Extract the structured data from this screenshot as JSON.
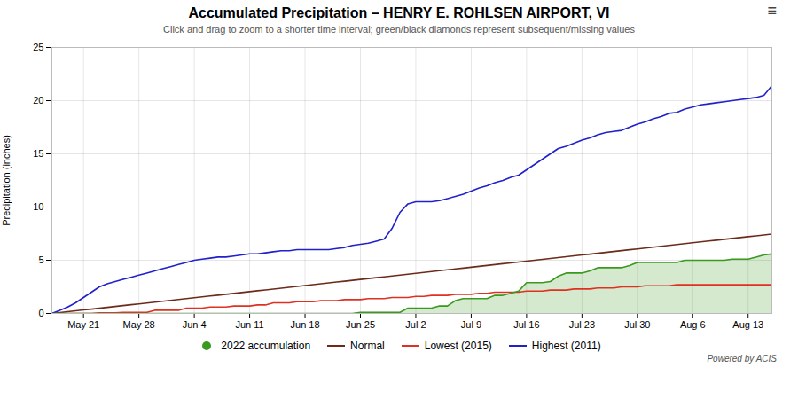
{
  "chart_data": {
    "type": "line",
    "title": "Accumulated Precipitation – HENRY E. ROHLSEN AIRPORT, VI",
    "subtitle": "Click and drag to zoom to a shorter time interval; green/black diamonds represent subsequent/missing values",
    "ylabel": "Precipitation (inches)",
    "annotations": [
      "≡",
      "Powered by ACIS"
    ],
    "categories": [
      null,
      null,
      null,
      null,
      "May 21",
      null,
      null,
      null,
      null,
      null,
      null,
      "May 28",
      null,
      null,
      null,
      null,
      null,
      null,
      "Jun 4",
      null,
      null,
      null,
      null,
      null,
      null,
      "Jun 11",
      null,
      null,
      null,
      null,
      null,
      null,
      "Jun 18",
      null,
      null,
      null,
      null,
      null,
      null,
      "Jun 25",
      null,
      null,
      null,
      null,
      null,
      null,
      "Jul 2",
      null,
      null,
      null,
      null,
      null,
      null,
      "Jul 9",
      null,
      null,
      null,
      null,
      null,
      null,
      "Jul 16",
      null,
      null,
      null,
      null,
      null,
      null,
      "Jul 23",
      null,
      null,
      null,
      null,
      null,
      null,
      "Jul 30",
      null,
      null,
      null,
      null,
      null,
      null,
      "Aug 6",
      null,
      null,
      null,
      null,
      null,
      null,
      "Aug 13",
      null,
      null,
      null
    ],
    "ylim": [
      0,
      25
    ],
    "yticks": [
      0,
      5,
      10,
      15,
      20,
      25
    ],
    "grid": true,
    "legend": "bottom",
    "series": [
      {
        "name": "2022 accumulation",
        "type": "area",
        "color": "#3a9a20",
        "values": [
          0.0,
          0.0,
          0.0,
          0.0,
          0.0,
          0.0,
          0.0,
          0.0,
          0.0,
          0.0,
          0.0,
          0.0,
          0.0,
          0.0,
          0.0,
          0.0,
          0.0,
          0.0,
          0.0,
          0.0,
          0.0,
          0.0,
          0.0,
          0.0,
          0.0,
          0.0,
          0.0,
          0.0,
          0.0,
          0.0,
          0.0,
          0.0,
          0.0,
          0.0,
          0.0,
          0.0,
          0.0,
          0.0,
          0.0,
          0.1,
          0.1,
          0.1,
          0.1,
          0.1,
          0.1,
          0.5,
          0.5,
          0.5,
          0.5,
          0.7,
          0.7,
          1.2,
          1.4,
          1.4,
          1.4,
          1.4,
          1.7,
          1.7,
          1.9,
          2.1,
          2.9,
          2.9,
          2.9,
          3.0,
          3.5,
          3.8,
          3.8,
          3.8,
          4.0,
          4.3,
          4.3,
          4.3,
          4.3,
          4.5,
          4.8,
          4.8,
          4.8,
          4.8,
          4.8,
          4.8,
          5.0,
          5.0,
          5.0,
          5.0,
          5.0,
          5.0,
          5.1,
          5.1,
          5.1,
          5.3,
          5.5,
          5.6
        ]
      },
      {
        "name": "Normal",
        "type": "line",
        "color": "#6b2a1a",
        "values": [
          0.0,
          0.082,
          0.164,
          0.246,
          0.328,
          0.41,
          0.492,
          0.574,
          0.656,
          0.738,
          0.82,
          0.902,
          0.984,
          1.066,
          1.148,
          1.23,
          1.312,
          1.394,
          1.476,
          1.558,
          1.64,
          1.722,
          1.804,
          1.886,
          1.968,
          2.05,
          2.132,
          2.214,
          2.296,
          2.378,
          2.46,
          2.542,
          2.624,
          2.706,
          2.788,
          2.87,
          2.952,
          3.034,
          3.116,
          3.198,
          3.28,
          3.362,
          3.444,
          3.526,
          3.608,
          3.69,
          3.772,
          3.854,
          3.936,
          4.018,
          4.1,
          4.182,
          4.264,
          4.346,
          4.428,
          4.51,
          4.592,
          4.674,
          4.756,
          4.838,
          4.92,
          5.002,
          5.084,
          5.166,
          5.248,
          5.33,
          5.412,
          5.494,
          5.576,
          5.658,
          5.74,
          5.822,
          5.904,
          5.986,
          6.068,
          6.15,
          6.232,
          6.314,
          6.396,
          6.478,
          6.56,
          6.642,
          6.724,
          6.806,
          6.888,
          6.97,
          7.052,
          7.134,
          7.216,
          7.298,
          7.38,
          7.462
        ]
      },
      {
        "name": "Lowest (2015)",
        "type": "line",
        "color": "#e03020",
        "values": [
          0.0,
          0.0,
          0.0,
          0.0,
          0.0,
          0.0,
          0.05,
          0.05,
          0.05,
          0.1,
          0.1,
          0.1,
          0.1,
          0.3,
          0.3,
          0.3,
          0.3,
          0.5,
          0.5,
          0.5,
          0.6,
          0.6,
          0.6,
          0.7,
          0.7,
          0.7,
          0.8,
          0.8,
          1.0,
          1.0,
          1.0,
          1.1,
          1.1,
          1.1,
          1.2,
          1.2,
          1.2,
          1.3,
          1.3,
          1.3,
          1.4,
          1.4,
          1.4,
          1.5,
          1.5,
          1.5,
          1.6,
          1.6,
          1.7,
          1.7,
          1.7,
          1.8,
          1.8,
          1.8,
          1.9,
          1.9,
          2.0,
          2.0,
          2.0,
          2.0,
          2.1,
          2.1,
          2.1,
          2.2,
          2.2,
          2.2,
          2.3,
          2.3,
          2.3,
          2.4,
          2.4,
          2.4,
          2.5,
          2.5,
          2.5,
          2.6,
          2.6,
          2.6,
          2.6,
          2.7,
          2.7,
          2.7,
          2.7,
          2.7,
          2.7,
          2.7,
          2.7,
          2.7,
          2.7,
          2.7,
          2.7,
          2.7
        ]
      },
      {
        "name": "Highest (2011)",
        "type": "line",
        "color": "#2020cc",
        "values": [
          0.0,
          0.3,
          0.6,
          1.0,
          1.5,
          2.0,
          2.5,
          2.8,
          3.0,
          3.2,
          3.4,
          3.6,
          3.8,
          4.0,
          4.2,
          4.4,
          4.6,
          4.8,
          5.0,
          5.1,
          5.2,
          5.3,
          5.3,
          5.4,
          5.5,
          5.6,
          5.6,
          5.7,
          5.8,
          5.9,
          5.9,
          6.0,
          6.0,
          6.0,
          6.0,
          6.0,
          6.1,
          6.2,
          6.4,
          6.5,
          6.6,
          6.8,
          7.0,
          8.0,
          9.5,
          10.3,
          10.5,
          10.5,
          10.5,
          10.6,
          10.8,
          11.0,
          11.2,
          11.5,
          11.8,
          12.0,
          12.3,
          12.5,
          12.8,
          13.0,
          13.5,
          14.0,
          14.5,
          15.0,
          15.5,
          15.7,
          16.0,
          16.3,
          16.5,
          16.8,
          17.0,
          17.1,
          17.2,
          17.5,
          17.8,
          18.0,
          18.3,
          18.5,
          18.8,
          18.9,
          19.2,
          19.4,
          19.6,
          19.7,
          19.8,
          19.9,
          20.0,
          20.1,
          20.2,
          20.3,
          20.5,
          21.4
        ]
      }
    ]
  }
}
